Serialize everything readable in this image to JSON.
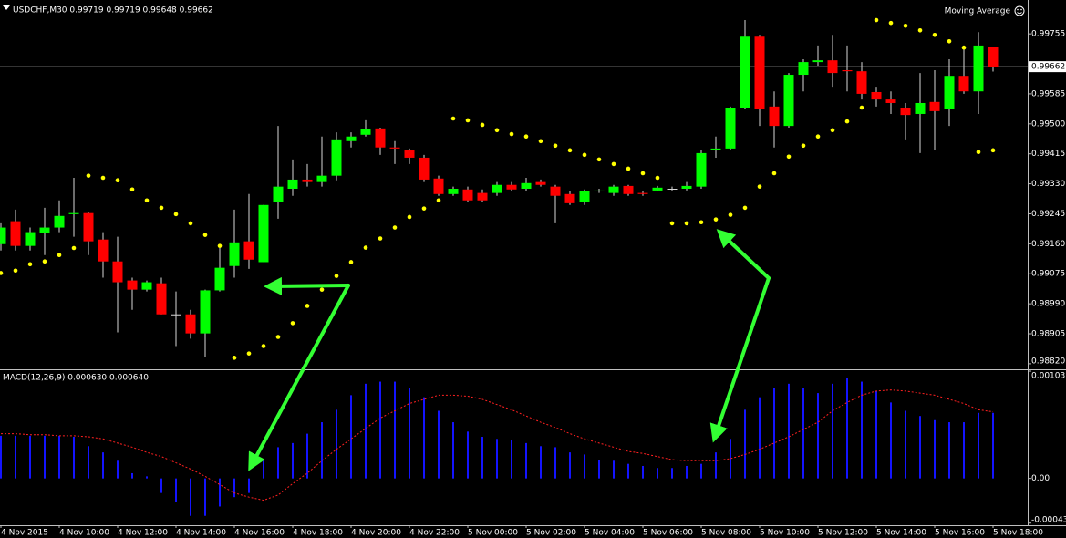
{
  "chart_data": [
    {
      "type": "candlestick",
      "title": "USDCHF,M30  0.99719 0.99719 0.99648 0.99662",
      "indicator_label": "Moving Average",
      "categories": [
        "4 Nov 2015",
        null,
        null,
        null,
        "4 Nov 10:00",
        null,
        null,
        null,
        "4 Nov 12:00",
        null,
        null,
        null,
        "4 Nov 14:00",
        null,
        null,
        null,
        "4 Nov 16:00",
        null,
        null,
        null,
        "4 Nov 18:00",
        null,
        null,
        null,
        "4 Nov 20:00",
        null,
        null,
        null,
        "4 Nov 22:00",
        null,
        null,
        null,
        "5 Nov 00:00",
        null,
        null,
        null,
        "5 Nov 02:00",
        null,
        null,
        null,
        "5 Nov 04:00",
        null,
        null,
        null,
        "5 Nov 06:00",
        null,
        null,
        null,
        "5 Nov 08:00",
        null,
        null,
        null,
        "5 Nov 10:00",
        null,
        null,
        null,
        "5 Nov 12:00",
        null,
        null,
        null,
        "5 Nov 14:00",
        null,
        null,
        null,
        "5 Nov 16:00",
        null,
        null,
        null,
        "5 Nov 18:00"
      ],
      "open": [
        0.99159,
        0.99224,
        0.99154,
        0.9919,
        0.99206,
        0.99244,
        0.99247,
        0.99172,
        0.9911,
        0.99056,
        0.9903,
        0.99048,
        0.9896,
        0.9896,
        0.98906,
        0.99028,
        0.99097,
        0.99167,
        0.99108,
        0.99278,
        0.99316,
        0.99342,
        0.99335,
        0.99353,
        0.99451,
        0.99469,
        0.99487,
        0.99433,
        0.99425,
        0.99404,
        0.99345,
        0.99301,
        0.99314,
        0.99304,
        0.99304,
        0.99327,
        0.99316,
        0.99335,
        0.99322,
        0.99301,
        0.99278,
        0.99309,
        0.99304,
        0.99324,
        0.99304,
        0.99311,
        0.99316,
        0.99316,
        0.99322,
        0.99425,
        0.9943,
        0.99546,
        0.99747,
        0.99549,
        0.99494,
        0.99639,
        0.99675,
        0.9968,
        0.99652,
        0.99649,
        0.9959,
        0.99569,
        0.99546,
        0.99528,
        0.99562,
        0.99541,
        0.99636,
        0.99592,
        0.99719
      ],
      "high": [
        0.99218,
        0.99257,
        0.99206,
        0.99262,
        0.99283,
        0.99347,
        0.99249,
        0.99193,
        0.9918,
        0.99064,
        0.99056,
        0.99064,
        0.99025,
        0.98973,
        0.9903,
        0.99154,
        0.99257,
        0.99301,
        0.9927,
        0.99494,
        0.99399,
        0.99386,
        0.99464,
        0.99476,
        0.99476,
        0.9951,
        0.99489,
        0.99451,
        0.9943,
        0.99412,
        0.99353,
        0.99322,
        0.99322,
        0.99314,
        0.99335,
        0.99335,
        0.99347,
        0.99342,
        0.99327,
        0.99309,
        0.99314,
        0.99316,
        0.99327,
        0.99327,
        0.99309,
        0.99324,
        0.99322,
        0.99335,
        0.99425,
        0.99464,
        0.99549,
        0.99794,
        0.99752,
        0.99592,
        0.99644,
        0.99683,
        0.99722,
        0.99752,
        0.99722,
        0.99675,
        0.99605,
        0.99592,
        0.99559,
        0.99644,
        0.99652,
        0.99683,
        0.99722,
        0.9976,
        0.99719
      ],
      "low": [
        0.99141,
        0.99141,
        0.99141,
        0.99128,
        0.99193,
        0.9918,
        0.99128,
        0.99064,
        0.98909,
        0.98973,
        0.99025,
        0.9896,
        0.9887,
        0.98891,
        0.98839,
        0.99025,
        0.99064,
        0.99089,
        0.99108,
        0.99231,
        0.99296,
        0.99322,
        0.99322,
        0.9934,
        0.99433,
        0.99464,
        0.99412,
        0.99386,
        0.99386,
        0.99335,
        0.99296,
        0.99296,
        0.99278,
        0.99278,
        0.99296,
        0.99309,
        0.99309,
        0.99322,
        0.99218,
        0.9927,
        0.9927,
        0.99304,
        0.99296,
        0.99296,
        0.99296,
        0.99309,
        0.99311,
        0.99311,
        0.99316,
        0.99404,
        0.99425,
        0.99541,
        0.99494,
        0.99433,
        0.99489,
        0.99592,
        0.99665,
        0.99605,
        0.99592,
        0.99569,
        0.99549,
        0.99528,
        0.99456,
        0.99417,
        0.99425,
        0.99494,
        0.99585,
        0.99528,
        0.99648
      ],
      "close": [
        0.99206,
        0.99154,
        0.99193,
        0.99206,
        0.99239,
        0.99247,
        0.99167,
        0.9911,
        0.99051,
        0.9903,
        0.99051,
        0.9896,
        0.9896,
        0.98906,
        0.99028,
        0.99092,
        0.99164,
        0.99115,
        0.9927,
        0.99322,
        0.99342,
        0.99335,
        0.99353,
        0.99456,
        0.99464,
        0.99484,
        0.99433,
        0.9943,
        0.99404,
        0.99342,
        0.99301,
        0.99316,
        0.99283,
        0.99283,
        0.99327,
        0.99314,
        0.99332,
        0.99327,
        0.99296,
        0.99275,
        0.99309,
        0.99311,
        0.99322,
        0.99301,
        0.99301,
        0.99319,
        0.99316,
        0.99324,
        0.99417,
        0.9943,
        0.99546,
        0.99747,
        0.99541,
        0.99494,
        0.99639,
        0.99675,
        0.9968,
        0.99644,
        0.99649,
        0.99585,
        0.99569,
        0.99559,
        0.99525,
        0.99559,
        0.99536,
        0.99636,
        0.99592,
        0.99722,
        0.99662
      ],
      "sar": [
        0.99077,
        0.99084,
        0.99102,
        0.9911,
        0.99128,
        0.99148,
        0.99353,
        0.99347,
        0.9934,
        0.99314,
        0.99283,
        0.99262,
        0.99244,
        0.99218,
        0.99185,
        0.99154,
        0.98837,
        0.98849,
        0.9887,
        0.98896,
        0.98935,
        0.98984,
        0.9903,
        0.99069,
        0.99108,
        0.99149,
        0.99175,
        0.99206,
        0.99236,
        0.9926,
        0.99283,
        0.99515,
        0.9951,
        0.99497,
        0.99482,
        0.99471,
        0.99464,
        0.99451,
        0.99438,
        0.99425,
        0.99412,
        0.99399,
        0.99386,
        0.99373,
        0.9936,
        0.99347,
        0.99218,
        0.99218,
        0.99221,
        0.99229,
        0.99242,
        0.99262,
        0.99322,
        0.9936,
        0.99407,
        0.99438,
        0.99464,
        0.99482,
        0.99507,
        0.99546,
        0.99794,
        0.99786,
        0.99778,
        0.99765,
        0.99752,
        0.99734,
        0.99716,
        0.9942,
        0.99425
      ],
      "ylim": [
        0.98812,
        0.99851
      ],
      "yticks": [
        0.99755,
        0.99585,
        {
          "value": 0.995,
          "label": "0.99500"
        },
        0.99415,
        {
          "value": 0.9933,
          "label": "0.99330"
        },
        0.99245,
        {
          "value": 0.9916,
          "label": "0.99160"
        },
        0.99075,
        {
          "value": 0.9899,
          "label": "0.98990"
        },
        0.98905,
        {
          "value": 0.9882,
          "label": "0.98820"
        }
      ],
      "up_color": "#00ff00",
      "down_color": "#ff0000",
      "wick_color": "#d8d8d8",
      "sar_color": "#ffff00"
    },
    {
      "type": "macd",
      "title": "MACD(12,26,9) 0.000630 0.000640",
      "histogram": [
        0.00041,
        0.00041,
        0.00041,
        0.00041,
        0.00041,
        0.0004,
        0.00031,
        0.00025,
        0.00017,
        5e-05,
        2e-05,
        -0.00014,
        -0.00023,
        -0.00036,
        -0.00036,
        -0.00027,
        -0.00018,
        -0.00014,
        0.00017,
        0.0003,
        0.00034,
        0.00043,
        0.00054,
        0.00066,
        0.0008,
        0.00091,
        0.00093,
        0.00093,
        0.00087,
        0.00078,
        0.00065,
        0.00054,
        0.00045,
        0.0004,
        0.00038,
        0.00037,
        0.00034,
        0.00031,
        0.0003,
        0.00025,
        0.00023,
        0.00018,
        0.00017,
        0.00014,
        0.00012,
        0.0001,
        0.0001,
        0.00012,
        0.00014,
        0.00025,
        0.00038,
        0.00066,
        0.00078,
        0.00087,
        0.00091,
        0.00087,
        0.00082,
        0.00091,
        0.00097,
        0.00093,
        0.00084,
        0.00073,
        0.00065,
        0.0006,
        0.00056,
        0.00054,
        0.00054,
        0.00063,
        0.00063
      ],
      "signal": [
        0.00043,
        0.00043,
        0.00042,
        0.00042,
        0.00041,
        0.00041,
        0.0004,
        0.00038,
        0.00034,
        0.0003,
        0.00025,
        0.00021,
        0.00015,
        9e-05,
        2e-05,
        -6e-05,
        -0.00014,
        -0.00018,
        -0.00021,
        -0.00016,
        -5e-05,
        5e-05,
        0.00017,
        0.00028,
        0.00038,
        0.00048,
        0.00058,
        0.00065,
        0.00072,
        0.00076,
        0.0008,
        0.0008,
        0.00079,
        0.00076,
        0.00071,
        0.00066,
        0.0006,
        0.00054,
        0.00049,
        0.00043,
        0.00038,
        0.00034,
        0.0003,
        0.00026,
        0.00024,
        0.00021,
        0.00018,
        0.00017,
        0.00017,
        0.00017,
        0.00019,
        0.00023,
        0.00028,
        0.00034,
        0.0004,
        0.00047,
        0.00054,
        0.00065,
        0.00073,
        0.0008,
        0.00084,
        0.00085,
        0.00084,
        0.00082,
        0.0008,
        0.00076,
        0.00072,
        0.00066,
        0.00064
      ],
      "ylim": [
        -0.00045,
        0.00104
      ],
      "yticks": [
        0.001031,
        {
          "value": 0,
          "label": "0.00"
        },
        -0.00043
      ],
      "histogram_color": "#1414ff",
      "signal_color": "#ff2020"
    }
  ]
}
